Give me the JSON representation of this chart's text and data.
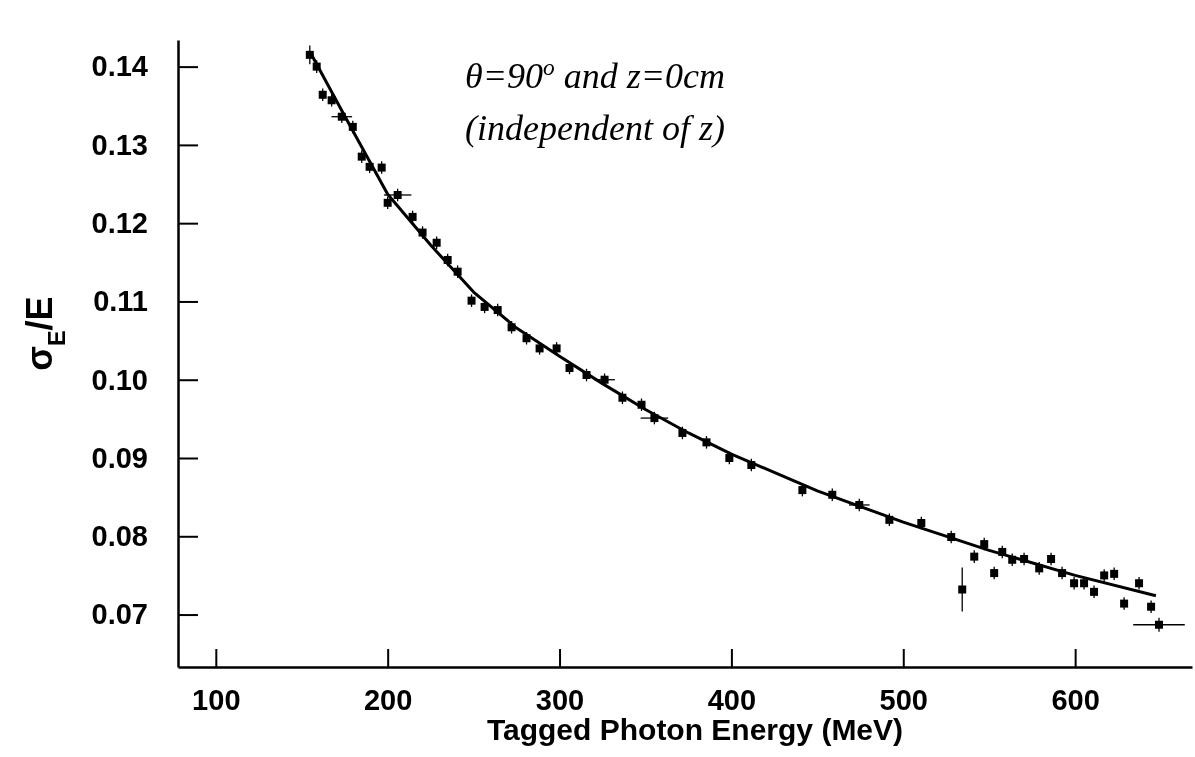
{
  "chart_data": {
    "type": "scatter",
    "xlabel": "Tagged Photon Energy (MeV)",
    "ylabel": "σ$_{E}$/E",
    "annotations": [
      "θ=90$^{o}$ and z=0cm",
      "(independent of z)"
    ],
    "xlim": [
      78,
      668
    ],
    "ylim": [
      0.0633,
      0.1434
    ],
    "xticks": [
      100,
      200,
      300,
      400,
      500,
      600
    ],
    "yticks": [
      0.07,
      0.08,
      0.09,
      {
        "value": 0.1,
        "label": "0.10"
      },
      0.11,
      0.12,
      0.13,
      0.14
    ],
    "grid": false,
    "series": [
      {
        "marker": "square",
        "color": "#000000",
        "x": [
          154.7,
          158.7,
          162.2,
          167.4,
          173.3,
          179.7,
          184.9,
          189.5,
          196.5,
          200.0,
          205.8,
          214.5,
          220.3,
          228.5,
          234.9,
          240.7,
          248.8,
          256.4,
          264.0,
          272.1,
          280.8,
          288.4,
          298.3,
          305.8,
          315.7,
          326.2,
          336.6,
          347.7,
          355.2,
          371.5,
          385.5,
          398.8,
          411.6,
          441.3,
          458.7,
          474.4,
          491.9,
          510.5,
          527.9,
          534.3,
          541.3,
          547.1,
          552.9,
          557.6,
          563.4,
          570.3,
          579.1,
          586.0,
          592.4,
          599.4,
          605.2,
          611.0,
          616.9,
          622.7,
          628.5,
          637.2,
          644.2,
          648.8
        ],
        "values": [
          0.1415,
          0.14,
          0.1364,
          0.1357,
          0.1336,
          0.1323,
          0.1285,
          0.1272,
          0.1271,
          0.1226,
          0.1236,
          0.1208,
          0.1188,
          0.1175,
          0.1153,
          0.1138,
          0.1101,
          0.1093,
          0.1089,
          0.1067,
          0.1053,
          0.104,
          0.104,
          0.1015,
          0.1006,
          0.1,
          0.0977,
          0.0968,
          0.0951,
          0.0932,
          0.092,
          0.09,
          0.0891,
          0.0859,
          0.0853,
          0.084,
          0.0821,
          0.0817,
          0.0799,
          0.0732,
          0.0774,
          0.079,
          0.0753,
          0.078,
          0.077,
          0.0771,
          0.0759,
          0.0771,
          0.0753,
          0.074,
          0.074,
          0.0729,
          0.075,
          0.0752,
          0.0714,
          0.074,
          0.071,
          0.0687
        ],
        "errors": [
          0.0012,
          0.0008,
          0.0008,
          0.0008,
          0.0008,
          0.0008,
          0.0008,
          0.0008,
          0.0008,
          0.0008,
          0.0008,
          0.0008,
          0.0008,
          0.0008,
          0.0008,
          0.0008,
          0.0008,
          0.0008,
          0.0008,
          0.0008,
          0.0008,
          0.0008,
          0.0008,
          0.0008,
          0.0008,
          0.0008,
          0.0008,
          0.0008,
          0.0008,
          0.0008,
          0.0008,
          0.0008,
          0.0008,
          0.0008,
          0.0008,
          0.0008,
          0.0008,
          0.0008,
          0.0008,
          0.0028,
          0.0008,
          0.0008,
          0.0008,
          0.0008,
          0.0008,
          0.0008,
          0.0008,
          0.0008,
          0.0008,
          0.0008,
          0.0008,
          0.0008,
          0.0008,
          0.0008,
          0.0008,
          0.0008,
          0.0008,
          0.0009
        ],
        "xerrors": [
          null,
          null,
          null,
          null,
          6,
          null,
          null,
          null,
          null,
          null,
          8,
          null,
          null,
          null,
          null,
          null,
          null,
          null,
          null,
          null,
          null,
          null,
          null,
          null,
          null,
          6,
          null,
          null,
          8,
          null,
          null,
          null,
          null,
          null,
          null,
          6,
          null,
          null,
          null,
          null,
          null,
          null,
          null,
          null,
          null,
          null,
          null,
          null,
          null,
          null,
          null,
          null,
          null,
          null,
          null,
          null,
          null,
          15
        ]
      },
      {
        "type": "line",
        "color": "#000000",
        "x": [
          155,
          175,
          200,
          225,
          250,
          275,
          300,
          325,
          350,
          375,
          400,
          450,
          500,
          550,
          600,
          647
        ],
        "values": [
          0.1418,
          0.1337,
          0.1237,
          0.1172,
          0.1112,
          0.1066,
          0.103,
          0.0995,
          0.0962,
          0.0932,
          0.0905,
          0.0858,
          0.0818,
          0.0782,
          0.075,
          0.0724
        ]
      }
    ]
  }
}
